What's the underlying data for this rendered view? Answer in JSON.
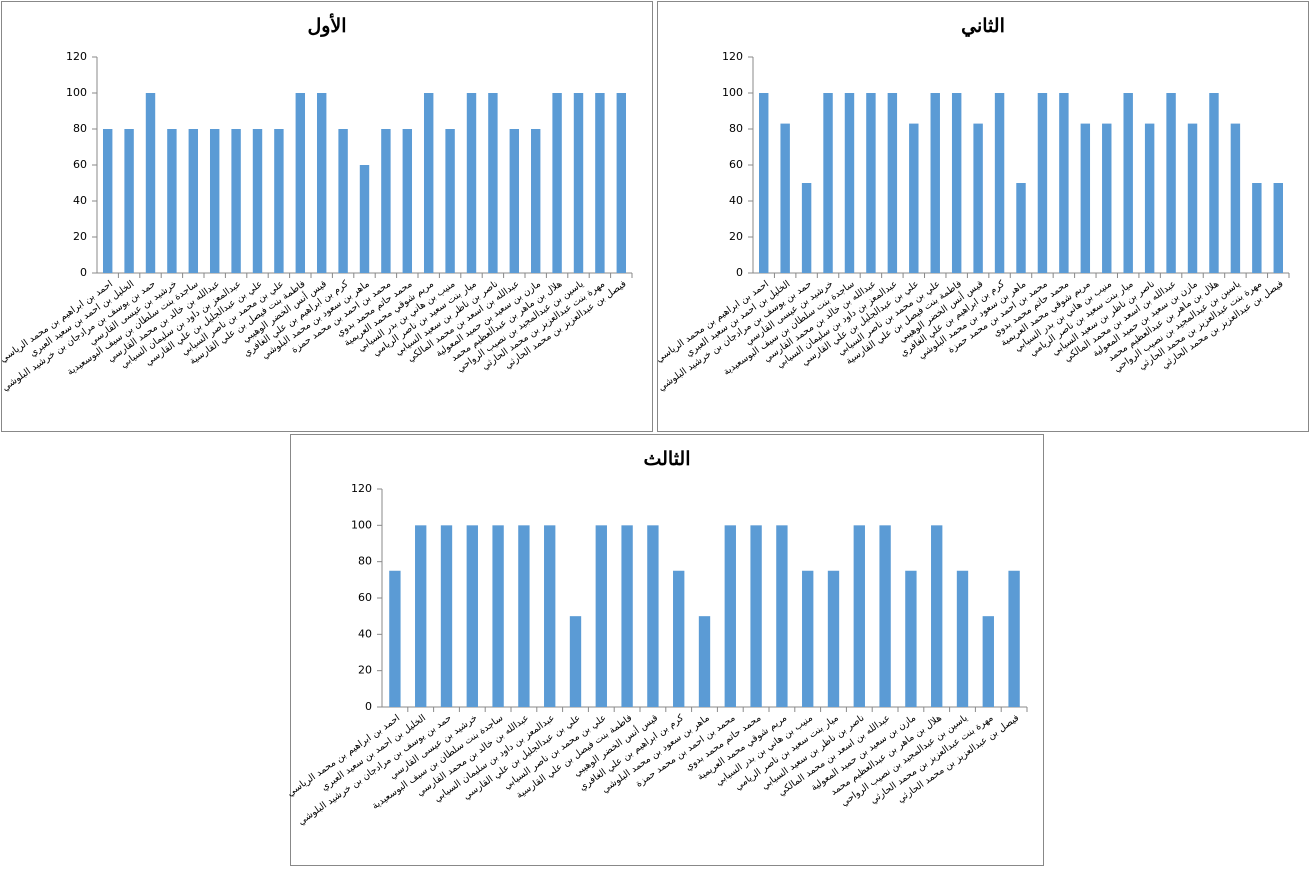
{
  "chart_data": [
    {
      "type": "bar",
      "title": "الأول",
      "color": "#5b9bd5",
      "grid": false,
      "categories": [
        "احمد بن ابراهيم بن محمد الرياسي",
        "الخليل بن احمد بن سعيد العبري",
        "حمد بن يوسف بن مرادجان بن خرشيد البلوشي",
        "خرشيد بن عيسى القارسي",
        "ساجدة بنت سلطان بن سيف البوسعيدية",
        "عبدالله بن خالد بن محمد القارسي",
        "عبدالمعز بن داود بن سليمان السيابي",
        "علي بن عبدالجليل بن علي القارسي",
        "علي بن محمد بن ناصر السيابي",
        "فاطمة بنت فيصل بن علي القارسية",
        "قيس أنس الخضر الوهيبي",
        "كرم بن ابراهيم بن علي الغافري",
        "ماهر بن سعود بن محمد البلوشي",
        "محمد بن احمد بن محمد حمزة",
        "محمد حاتم محمد بدوي",
        "مريم شوقي محمد العريمية",
        "منيب بن هاني بن بدر السيابي",
        "ميار بنت سعيد بن ناصر الريامي",
        "ناصر بن ناظر بن سعيد السيابي",
        "عبدالله بن اسعد بن محمد المالكي",
        "مازن بن سعيد بن حميد المعولية",
        "هلال بن ماهر بن عبدالعظيم محمد",
        "ياسين بن عبدالمجيد بن نصيب الرواحي",
        "مهرة بنت عبدالعزيز بن محمد الحارثي",
        "فيصل بن عبدالعزيز بن محمد الحارثي"
      ],
      "values": [
        80,
        80,
        100,
        80,
        80,
        80,
        80,
        80,
        80,
        100,
        100,
        80,
        60,
        80,
        80,
        100,
        80,
        100,
        100,
        80,
        80,
        100,
        100,
        100,
        100
      ],
      "ylim": [
        0,
        120
      ],
      "yticks": [
        0,
        20,
        40,
        60,
        80,
        100,
        120
      ]
    },
    {
      "type": "bar",
      "title": "الثاني",
      "color": "#5b9bd5",
      "grid": false,
      "categories": [
        "احمد بن ابراهيم بن محمد الرياسي",
        "الخليل بن احمد بن سعيد العبري",
        "حمد بن يوسف بن مرادجان بن خرشيد البلوشي",
        "خرشيد بن عيسى القارسي",
        "ساجدة بنت سلطان بن سيف البوسعيدية",
        "عبدالله بن خالد بن محمد القارسي",
        "عبدالمعز بن داود بن سليمان السيابي",
        "علي بن عبدالجليل بن علي القارسي",
        "علي بن محمد بن ناصر السيابي",
        "فاطمة بنت فيصل بن علي القارسية",
        "قيس أنس الخضر الوهيبي",
        "كرم بن ابراهيم بن علي الغافري",
        "ماهر بن سعود بن محمد البلوشي",
        "محمد بن احمد بن محمد حمزة",
        "محمد حاتم محمد بدوي",
        "مريم شوقي محمد العريمية",
        "منيب بن هاني بن بدر السيابي",
        "ميار بنت سعيد بن ناصر الريامي",
        "ناصر بن ناظر بن سعيد السيابي",
        "عبدالله بن اسعد بن محمد المالكي",
        "مازن بن سعيد بن حميد المعولية",
        "هلال بن ماهر بن عبدالعظيم محمد",
        "ياسين بن عبدالمجيد بن نصيب الرواحي",
        "مهرة بنت عبدالعزيز بن محمد الحارثي",
        "فيصل بن عبدالعزيز بن محمد الحارثي"
      ],
      "values": [
        100,
        83,
        50,
        100,
        100,
        100,
        100,
        83,
        100,
        100,
        83,
        100,
        50,
        100,
        100,
        83,
        83,
        100,
        83,
        100,
        83,
        100,
        83,
        50,
        50
      ],
      "ylim": [
        0,
        120
      ],
      "yticks": [
        0,
        20,
        40,
        60,
        80,
        100,
        120
      ]
    },
    {
      "type": "bar",
      "title": "الثالث",
      "color": "#5b9bd5",
      "grid": false,
      "categories": [
        "احمد بن ابراهيم بن محمد الرياسي",
        "الخليل بن احمد بن سعيد العبري",
        "حمد بن يوسف بن مرادجان بن خرشيد البلوشي",
        "خرشيد بن عيسى القارسي",
        "ساجدة بنت سلطان بن سيف البوسعيدية",
        "عبدالله بن خالد بن محمد القارسي",
        "عبدالمعز بن داود بن سليمان السيابي",
        "علي بن عبدالجليل بن علي القارسي",
        "علي بن محمد بن ناصر السيابي",
        "فاطمة بنت فيصل بن علي القارسية",
        "قيس أنس الخضر الوهيبي",
        "كرم بن ابراهيم بن علي الغافري",
        "ماهر بن سعود بن محمد البلوشي",
        "محمد بن احمد بن محمد حمزة",
        "محمد حاتم محمد بدوي",
        "مريم شوقي محمد العريمية",
        "منيب بن هاني بن بدر السيابي",
        "ميار بنت سعيد بن ناصر الريامي",
        "ناصر بن ناظر بن سعيد السيابي",
        "عبدالله بن اسعد بن محمد المالكي",
        "مازن بن سعيد بن حميد المعولية",
        "هلال بن ماهر بن عبدالعظيم محمد",
        "ياسين بن عبدالمجيد بن نصيب الرواحي",
        "مهرة بنت عبدالعزيز بن محمد الحارثي",
        "فيصل بن عبدالعزيز بن محمد الحارثي"
      ],
      "values": [
        75,
        100,
        100,
        100,
        100,
        100,
        100,
        50,
        100,
        100,
        100,
        75,
        50,
        100,
        100,
        100,
        75,
        75,
        100,
        100,
        75,
        100,
        75,
        50,
        75
      ],
      "ylim": [
        0,
        120
      ],
      "yticks": [
        0,
        20,
        40,
        60,
        80,
        100,
        120
      ]
    }
  ]
}
